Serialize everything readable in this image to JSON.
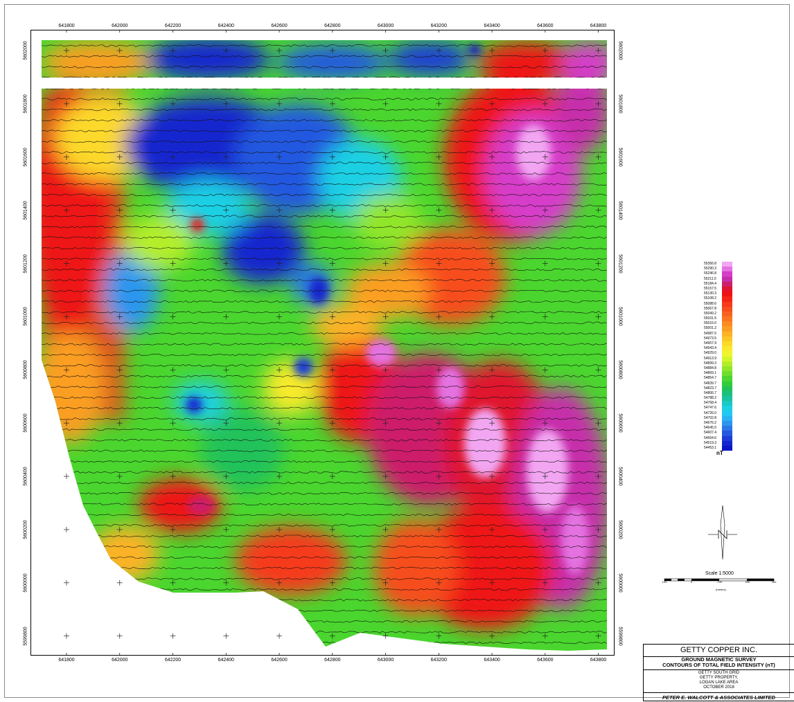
{
  "map": {
    "x_ticks": [
      "641800",
      "642000",
      "642200",
      "642400",
      "642600",
      "642800",
      "643000",
      "643200",
      "643400",
      "643600",
      "643800"
    ],
    "y_ticks": [
      "5602000",
      "5601800",
      "5601600",
      "5601400",
      "5601200",
      "5601000",
      "5600800",
      "5600600",
      "5600400",
      "5600200",
      "5600000",
      "5599800"
    ],
    "x_range": [
      641710,
      643830
    ],
    "y_range": [
      5599670,
      5602070
    ]
  },
  "legend": {
    "values": [
      "55356.8",
      "55290.3",
      "55246.8",
      "55211.0",
      "55184.4",
      "55157.5",
      "55130.3",
      "55108.2",
      "55088.6",
      "55067.8",
      "55049.2",
      "55031.5",
      "55016.0",
      "55001.2",
      "54987.5",
      "54973.5",
      "54957.9",
      "54943.4",
      "54929.0",
      "54913.9",
      "54899.3",
      "54884.8",
      "54869.1",
      "54854.7",
      "54839.7",
      "54823.7",
      "54806.7",
      "54788.2",
      "54768.4",
      "54747.6",
      "54726.0",
      "54702.8",
      "54676.2",
      "54645.0",
      "54607.4",
      "54564.6",
      "54519.3",
      "54453.1"
    ],
    "colors": [
      "#f2a6f2",
      "#e472e0",
      "#d63dc9",
      "#c62daa",
      "#cc1f6b",
      "#e0142f",
      "#ee1212",
      "#f52416",
      "#f63a1a",
      "#f74e1c",
      "#f8621e",
      "#f97620",
      "#fa8a22",
      "#fb9e24",
      "#fcb226",
      "#fdc628",
      "#fcd92a",
      "#f8ea2c",
      "#eef52e",
      "#d4f52c",
      "#b4ee2a",
      "#92e62a",
      "#6ede2c",
      "#4ad62e",
      "#30cc3a",
      "#22c25a",
      "#1cc07c",
      "#1ac2a0",
      "#1ac8c4",
      "#1cd0e4",
      "#22c8f4",
      "#2ab2f4",
      "#2c96ee",
      "#2a78e8",
      "#2458e0",
      "#1c3cd6",
      "#1426ce",
      "#0c16c4"
    ],
    "unit": "nT"
  },
  "north_arrow_icon": "north-arrow-icon",
  "scale": {
    "label": "Scale 1:5000",
    "ticks": [
      "100",
      "0",
      "100",
      "200",
      "300"
    ],
    "units": "(meters)"
  },
  "title_block": {
    "company": "GETTY COPPER INC.",
    "survey": "GROUND MAGNETIC SURVEY",
    "contours": "CONTOURS OF TOTAL FIELD INTENSITY (nT)",
    "grid": "GETTY SOUTH GRID",
    "property": "GETTY PROPERTY,",
    "area": "LOGAN LAKE AREA",
    "date": "OCTOBER 2018",
    "author": "PETER E. WALCOTT & ASSOCIATES LIMITED"
  }
}
